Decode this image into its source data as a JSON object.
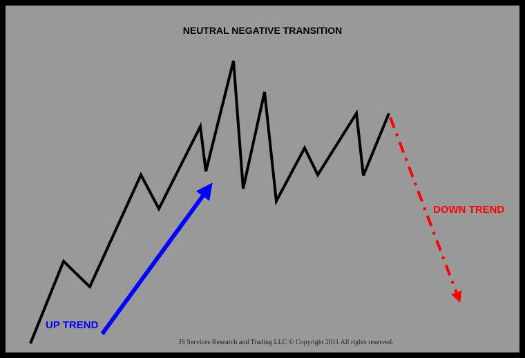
{
  "title": "NEUTRAL NEGATIVE TRANSITION",
  "labels": {
    "up_trend": "UP TREND",
    "down_trend": "DOWN TREND"
  },
  "copyright": "JS Services Research and Trading LLC © Copyright 2011 All rights reserved.",
  "colors": {
    "background": "#999999",
    "border": "#000000",
    "price_line": "#000000",
    "up_trend": "#0000ff",
    "down_trend": "#ff0000"
  }
}
